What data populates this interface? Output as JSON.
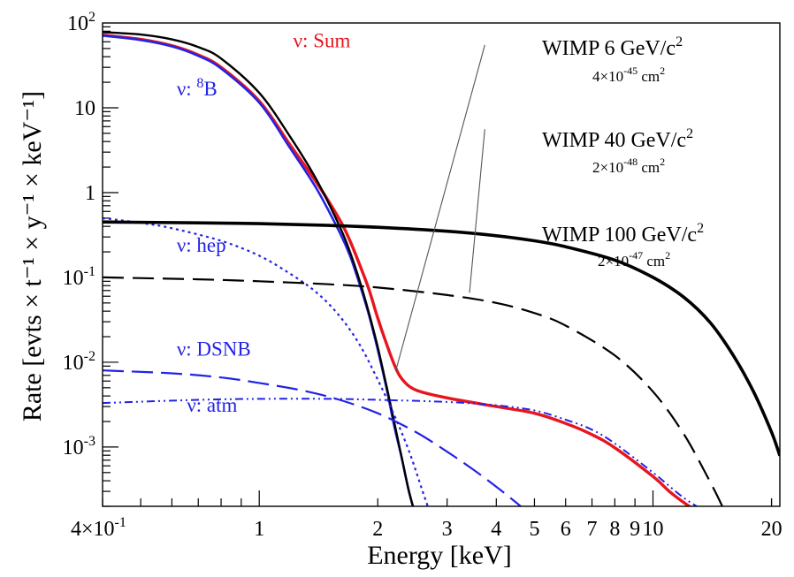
{
  "chart_data": {
    "type": "line",
    "title": "",
    "xlabel": "Energy [keV]",
    "ylabel": "Rate [evts × t⁻¹ × y⁻¹ × keV⁻¹]",
    "xscale": "log",
    "yscale": "log",
    "xlim": [
      0.4,
      21
    ],
    "ylim": [
      0.0002,
      100
    ],
    "grid": false,
    "legend": "none",
    "x_tick_labels": [
      {
        "value": 0.4,
        "base": "4×10",
        "exp": "-1"
      },
      {
        "value": 1,
        "text": "1"
      },
      {
        "value": 2,
        "text": "2"
      },
      {
        "value": 3,
        "text": "3"
      },
      {
        "value": 4,
        "text": "4"
      },
      {
        "value": 5,
        "text": "5"
      },
      {
        "value": 6,
        "text": "6"
      },
      {
        "value": 7,
        "text": "7"
      },
      {
        "value": 8,
        "text": "8"
      },
      {
        "value": 9,
        "text": "9"
      },
      {
        "value": 10,
        "text": "10"
      },
      {
        "value": 20,
        "text": "20"
      }
    ],
    "y_tick_labels": [
      {
        "value": 100,
        "base": "10",
        "exp": "2"
      },
      {
        "value": 10,
        "text": "10"
      },
      {
        "value": 1,
        "text": "1"
      },
      {
        "value": 0.1,
        "base": "10",
        "exp": "-1"
      },
      {
        "value": 0.01,
        "base": "10",
        "exp": "-2"
      },
      {
        "value": 0.001,
        "base": "10",
        "exp": "-3"
      }
    ],
    "series": [
      {
        "key": "nu_sum",
        "color": "#e8141e",
        "width": 3.4,
        "dash": "",
        "x": [
          0.4,
          0.5,
          0.6,
          0.7,
          0.8,
          1.0,
          1.2,
          1.4,
          1.6,
          1.7,
          1.8,
          1.9,
          2.0,
          2.1,
          2.2,
          2.3,
          2.5,
          3.0,
          4.0,
          5.0,
          6.0,
          7.0,
          8.0,
          10.0,
          11.0,
          12.0,
          12.8
        ],
        "y": [
          72,
          64,
          54,
          42,
          30,
          12,
          3.6,
          1.3,
          0.48,
          0.27,
          0.14,
          0.072,
          0.033,
          0.017,
          0.0095,
          0.0064,
          0.0047,
          0.0038,
          0.003,
          0.0025,
          0.0019,
          0.0014,
          0.00098,
          0.00045,
          0.0003,
          0.00022,
          0.00018
        ]
      },
      {
        "key": "nu_8B",
        "color": "#2323e6",
        "width": 2.6,
        "dash": "",
        "x": [
          0.4,
          0.5,
          0.6,
          0.7,
          0.8,
          1.0,
          1.2,
          1.4,
          1.6,
          1.7,
          1.8,
          1.9,
          2.0,
          2.1,
          2.2,
          2.3,
          2.4,
          2.5
        ],
        "y": [
          71,
          63,
          53,
          41,
          29,
          11.5,
          3.3,
          1.1,
          0.34,
          0.18,
          0.082,
          0.036,
          0.014,
          0.0052,
          0.0018,
          0.00075,
          0.0003,
          0.00015
        ]
      },
      {
        "key": "total_black",
        "color": "#000000",
        "width": 2.4,
        "dash": "",
        "x": [
          0.4,
          0.5,
          0.6,
          0.7,
          0.8,
          1.0,
          1.2,
          1.4,
          1.6,
          1.7,
          1.8,
          1.9,
          2.0,
          2.1,
          2.2,
          2.3,
          2.4,
          2.5
        ],
        "y": [
          78,
          73,
          64,
          52,
          38,
          15,
          4.5,
          1.4,
          0.4,
          0.2,
          0.09,
          0.038,
          0.015,
          0.0055,
          0.002,
          0.00075,
          0.0003,
          0.00015
        ]
      },
      {
        "key": "nu_hep",
        "color": "#2323e6",
        "width": 2.2,
        "dash": "3 4",
        "x": [
          0.4,
          0.5,
          0.6,
          0.8,
          1.0,
          1.2,
          1.4,
          1.6,
          1.8,
          2.0,
          2.2,
          2.4,
          2.6,
          2.7
        ],
        "y": [
          0.5,
          0.44,
          0.38,
          0.27,
          0.18,
          0.11,
          0.066,
          0.035,
          0.016,
          0.0062,
          0.0024,
          0.0009,
          0.0003,
          0.00018
        ]
      },
      {
        "key": "nu_dsnb",
        "color": "#2323e6",
        "width": 2.2,
        "dash": "24 9",
        "x": [
          0.4,
          0.6,
          0.8,
          1.0,
          1.3,
          1.6,
          2.0,
          2.5,
          3.0,
          3.5,
          4.0,
          4.5,
          4.8
        ],
        "y": [
          0.008,
          0.0074,
          0.0066,
          0.0057,
          0.0046,
          0.0036,
          0.0025,
          0.0015,
          0.00088,
          0.00054,
          0.00034,
          0.00022,
          0.00017
        ]
      },
      {
        "key": "nu_atm",
        "color": "#2323e6",
        "width": 2.0,
        "dash": "9 4 2 4 2 4",
        "x": [
          0.4,
          0.7,
          1.0,
          1.5,
          2.0,
          3.0,
          4.0,
          5.0,
          6.0,
          7.0,
          8.0,
          10.0,
          12.0,
          14.0
        ],
        "y": [
          0.0033,
          0.0036,
          0.0037,
          0.0037,
          0.0036,
          0.0034,
          0.0031,
          0.0027,
          0.0021,
          0.0016,
          0.0011,
          0.0005,
          0.00025,
          0.00016
        ]
      },
      {
        "key": "wimp_100",
        "color": "#000000",
        "width": 3.6,
        "dash": "",
        "x": [
          0.4,
          0.7,
          1.0,
          1.5,
          2.0,
          3.0,
          4.0,
          5.0,
          6.0,
          8.0,
          10.0,
          12.0,
          14.0,
          16.0,
          18.0,
          20.0,
          21.0
        ],
        "y": [
          0.45,
          0.44,
          0.43,
          0.41,
          0.39,
          0.35,
          0.31,
          0.27,
          0.23,
          0.16,
          0.1,
          0.058,
          0.029,
          0.012,
          0.0045,
          0.0015,
          0.00079
        ]
      },
      {
        "key": "wimp_40",
        "color": "#000000",
        "width": 2.2,
        "dash": "24 10",
        "x": [
          0.4,
          0.7,
          1.0,
          1.5,
          2.0,
          3.0,
          4.0,
          5.0,
          6.0,
          8.0,
          10.0,
          12.0,
          14.0,
          15.0,
          16.0
        ],
        "y": [
          0.1,
          0.095,
          0.09,
          0.083,
          0.076,
          0.062,
          0.05,
          0.038,
          0.027,
          0.012,
          0.0045,
          0.0014,
          0.00038,
          0.0002,
          0.0001
        ]
      }
    ],
    "labels": [
      {
        "key": "sum",
        "x": 1.22,
        "y": 52,
        "color": "#e8141e",
        "prefix": "ν: ",
        "text": "Sum"
      },
      {
        "key": "b8",
        "x": 0.617,
        "y": 14,
        "color": "#2323e6",
        "prefix": "ν: ",
        "sup": "8",
        "text": "B"
      },
      {
        "key": "hep",
        "x": 0.617,
        "y": 0.2,
        "color": "#2323e6",
        "prefix": "ν: ",
        "text": "hep"
      },
      {
        "key": "dsnb",
        "x": 0.617,
        "y": 0.012,
        "color": "#2323e6",
        "prefix": "ν: ",
        "text": "DSNB"
      },
      {
        "key": "atm",
        "x": 0.655,
        "y": 0.0026,
        "color": "#2323e6",
        "prefix": "ν: ",
        "text": "atm"
      }
    ],
    "annotations": [
      {
        "key": "w6",
        "title": "WIMP 6 GeV/c",
        "title_sup": "2",
        "cross_base": "4×10",
        "cross_exp": "-45",
        "cross_unit": " cm",
        "cross_unit_sup": "2",
        "line_x1": 2.22,
        "line_y1": 0.0078,
        "line_x2": 3.74,
        "line_y2": 55
      },
      {
        "key": "w40",
        "title": "WIMP 40 GeV/c",
        "title_sup": "2",
        "cross_base": "2×10",
        "cross_exp": "-48",
        "cross_unit": " cm",
        "cross_unit_sup": "2",
        "line_x1": 3.42,
        "line_y1": 0.066,
        "line_x2": 3.74,
        "line_y2": 5.6
      },
      {
        "key": "w100",
        "title": "WIMP 100 GeV/c",
        "title_sup": "2",
        "cross_base": "2×10",
        "cross_exp": "-47",
        "cross_unit": " cm",
        "cross_unit_sup": "2"
      }
    ]
  }
}
